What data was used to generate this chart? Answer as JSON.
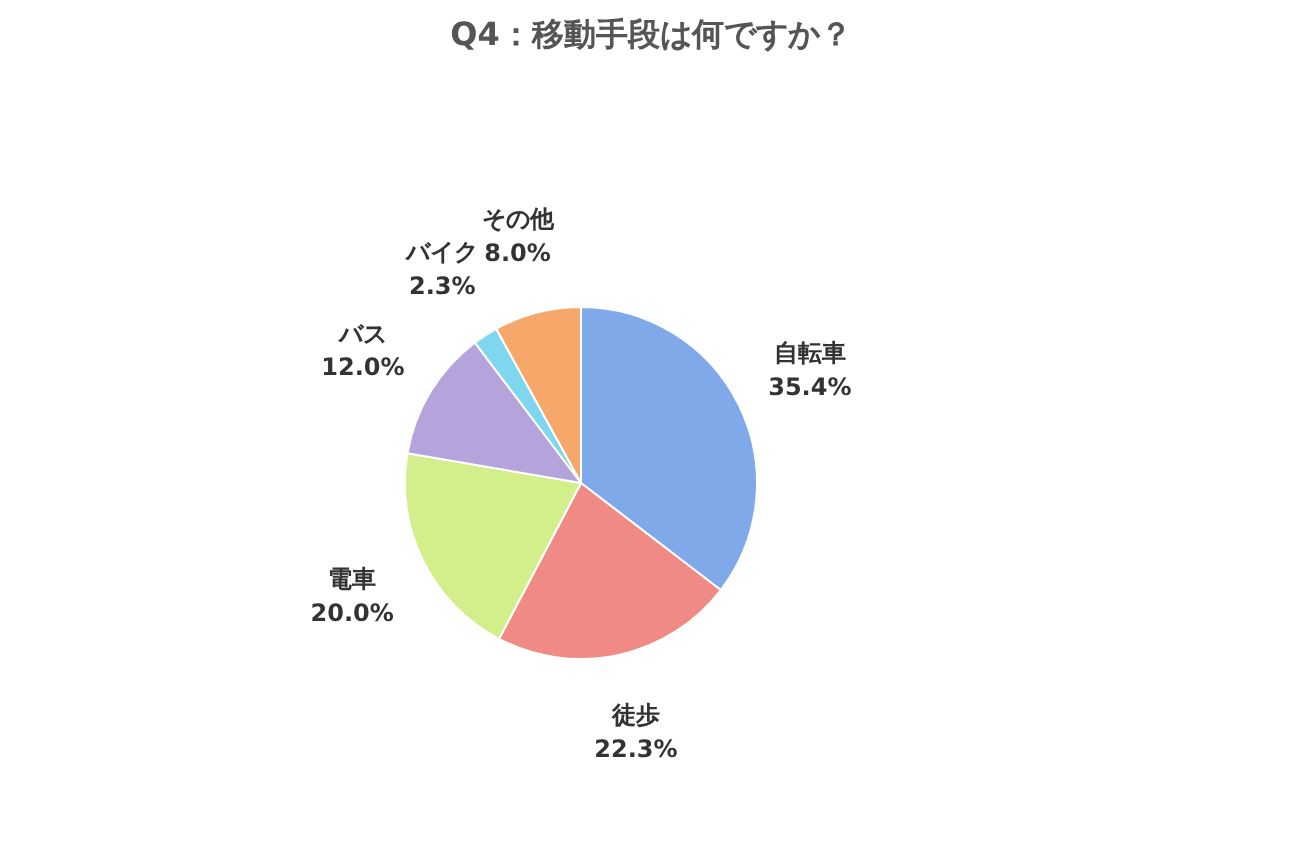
{
  "chart_data": {
    "type": "pie",
    "title": "Q4：移動手段は何ですか？",
    "categories": [
      "自転車",
      "徒歩",
      "電車",
      "バス",
      "バイク",
      "その他"
    ],
    "values": [
      35.4,
      22.3,
      20.0,
      12.0,
      2.3,
      8.0
    ],
    "value_labels": [
      "35.4%",
      "22.3%",
      "20.0%",
      "12.0%",
      "2.3%",
      "8.0%"
    ],
    "colors": [
      "#7fa9e8",
      "#f08a84",
      "#d3ef8c",
      "#b5a3db",
      "#7fd6ef",
      "#f6a86a"
    ],
    "legend": false
  }
}
